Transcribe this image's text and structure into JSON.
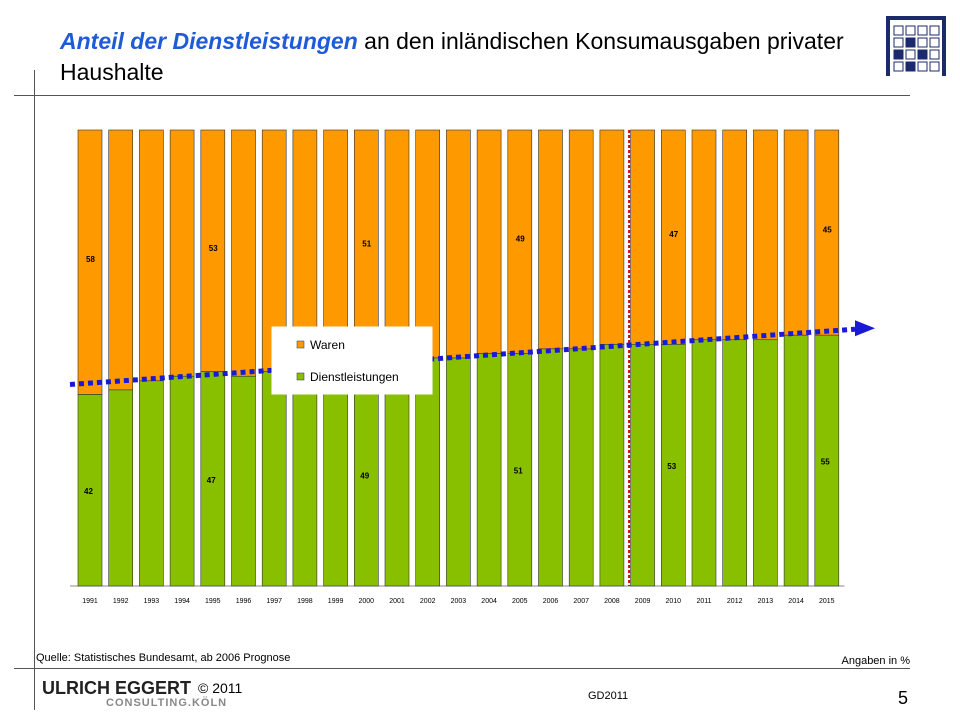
{
  "header": {
    "title_highlight": "Anteil der Dienstleistungen",
    "title_rest": " an den inländischen Konsumausgaben privater Haushalte"
  },
  "chart_data": {
    "type": "bar",
    "stacked": true,
    "categories": [
      "1991",
      "1992",
      "1993",
      "1994",
      "1995",
      "1996",
      "1997",
      "1998",
      "1999",
      "2000",
      "2001",
      "2002",
      "2003",
      "2004",
      "2005",
      "2006",
      "2007",
      "2008",
      "2009",
      "2010",
      "2011",
      "2012",
      "2013",
      "2014",
      "2015"
    ],
    "series": [
      {
        "name": "Dienstleistungen",
        "color": "#88c000",
        "values": [
          42,
          43,
          45,
          46,
          47,
          46,
          47,
          48,
          48,
          49,
          49,
          50,
          50,
          51,
          51,
          52,
          52,
          53,
          53,
          53,
          54,
          54,
          54,
          55,
          55
        ]
      },
      {
        "name": "Waren",
        "color": "#ff9900",
        "values": [
          58,
          57,
          55,
          54,
          53,
          54,
          53,
          52,
          52,
          51,
          51,
          50,
          50,
          49,
          49,
          48,
          48,
          47,
          47,
          47,
          46,
          46,
          46,
          45,
          45
        ]
      }
    ],
    "data_labels": [
      {
        "year": "1991",
        "waren": "58",
        "dienst": "42"
      },
      {
        "year": "1995",
        "waren": "53",
        "dienst": "47"
      },
      {
        "year": "2000",
        "waren": "51",
        "dienst": "49"
      },
      {
        "year": "2005",
        "waren": "49",
        "dienst": "51"
      },
      {
        "year": "2010",
        "waren": "47",
        "dienst": "53"
      },
      {
        "year": "2015",
        "waren": "45",
        "dienst": "55"
      }
    ],
    "forecast_divider_after": "2008",
    "trend": {
      "color": "#1a1ad6",
      "style": "dotted",
      "arrow": true
    },
    "legend": {
      "position": "center-left",
      "items": [
        "Waren",
        "Dienstleistungen"
      ]
    },
    "ylim": [
      0,
      100
    ]
  },
  "footer": {
    "source": "Quelle:  Statistisches Bundesamt, ab 2006 Prognose",
    "unit": "Angaben in   %",
    "brand_main": "ULRICH EGGERT",
    "brand_sub": "CONSULTING.KÖLN",
    "copyright": "© 2011",
    "code": "GD2011",
    "page": "5"
  },
  "colors": {
    "title_accent": "#1f5bd8",
    "waren": "#ff9900",
    "dienst": "#88c000",
    "divider": "#e00000",
    "trend": "#1a1ad6"
  },
  "logo": {
    "icon": "grid-logo-icon"
  }
}
